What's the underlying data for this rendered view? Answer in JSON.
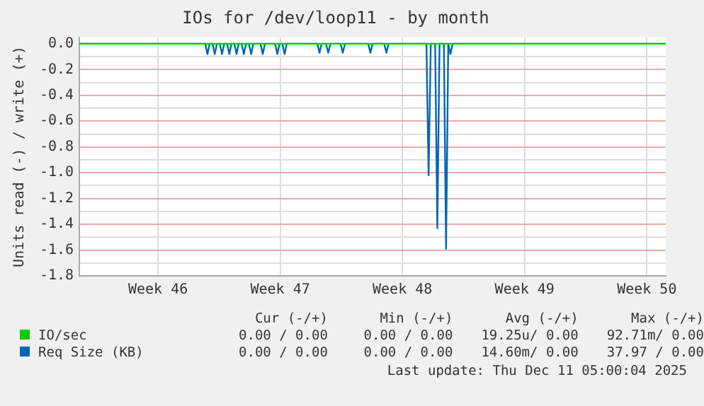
{
  "chart_data": {
    "type": "line",
    "title": "IOs for /dev/loop11 - by month",
    "ylabel": "Units read (-) / write (+)",
    "xlim": [
      "2025-11-09T00:00",
      "2025-12-12T14:00"
    ],
    "ylim": [
      -1.8,
      0.05
    ],
    "xticks": [
      {
        "value": "2025-11-13T12:00",
        "label": "Week 46"
      },
      {
        "value": "2025-11-20T12:00",
        "label": "Week 47"
      },
      {
        "value": "2025-11-27T12:00",
        "label": "Week 48"
      },
      {
        "value": "2025-12-04T12:00",
        "label": "Week 49"
      },
      {
        "value": "2025-12-11T12:00",
        "label": "Week 50"
      }
    ],
    "yticks": [
      {
        "value": 0,
        "label": "0.0"
      },
      {
        "value": -0.1,
        "label": null
      },
      {
        "value": -0.2,
        "label": "-0.2"
      },
      {
        "value": -0.3,
        "label": null
      },
      {
        "value": -0.4,
        "label": "-0.4"
      },
      {
        "value": -0.5,
        "label": null
      },
      {
        "value": -0.6,
        "label": "-0.6"
      },
      {
        "value": -0.7,
        "label": null
      },
      {
        "value": -0.8,
        "label": "-0.8"
      },
      {
        "value": -0.9,
        "label": null
      },
      {
        "value": -1.0,
        "label": "-1.0"
      },
      {
        "value": -1.1,
        "label": null
      },
      {
        "value": -1.2,
        "label": "-1.2"
      },
      {
        "value": -1.3,
        "label": null
      },
      {
        "value": -1.4,
        "label": "-1.4"
      },
      {
        "value": -1.5,
        "label": null
      },
      {
        "value": -1.6,
        "label": "-1.6"
      },
      {
        "value": -1.7,
        "label": null
      },
      {
        "value": -1.8,
        "label": "-1.8"
      }
    ],
    "grid": true,
    "legend": "bottom",
    "marker": "none",
    "line_style": "solid",
    "series": [
      {
        "name": "IO/sec",
        "color": "#00cc00",
        "x": [
          "2025-11-09T00:00",
          "2025-12-12T14:00"
        ],
        "values": [
          0,
          0
        ]
      },
      {
        "name": "Req Size (KB)",
        "color": "#0066b3",
        "x": [
          "2025-11-09T00:00",
          "2025-11-16T05:00",
          "2025-11-16T08:00",
          "2025-11-16T11:00",
          "2025-11-16T15:00",
          "2025-11-16T18:00",
          "2025-11-16T21:00",
          "2025-11-17T01:00",
          "2025-11-17T04:00",
          "2025-11-17T07:00",
          "2025-11-17T11:00",
          "2025-11-17T14:00",
          "2025-11-17T17:00",
          "2025-11-17T21:00",
          "2025-11-18T00:00",
          "2025-11-18T03:00",
          "2025-11-18T07:00",
          "2025-11-18T10:00",
          "2025-11-18T13:00",
          "2025-11-18T17:00",
          "2025-11-18T20:00",
          "2025-11-18T23:00",
          "2025-11-19T09:00",
          "2025-11-19T12:00",
          "2025-11-19T15:00",
          "2025-11-20T05:00",
          "2025-11-20T08:00",
          "2025-11-20T11:00",
          "2025-11-20T15:00",
          "2025-11-20T18:00",
          "2025-11-20T21:00",
          "2025-11-22T15:00",
          "2025-11-22T18:00",
          "2025-11-22T21:00",
          "2025-11-23T03:00",
          "2025-11-23T06:00",
          "2025-11-23T09:00",
          "2025-11-23T23:00",
          "2025-11-24T02:00",
          "2025-11-24T05:00",
          "2025-11-25T13:00",
          "2025-11-25T16:00",
          "2025-11-25T19:00",
          "2025-11-26T11:00",
          "2025-11-26T14:00",
          "2025-11-26T17:00",
          "2025-11-28T21:00",
          "2025-11-29T00:00",
          "2025-11-29T03:00",
          "2025-11-29T09:00",
          "2025-11-29T12:00",
          "2025-11-29T15:00",
          "2025-11-29T21:00",
          "2025-11-30T00:00",
          "2025-11-30T03:00",
          "2025-11-30T06:00",
          "2025-11-30T09:00",
          "2025-12-12T14:00"
        ],
        "values": [
          0,
          0,
          -0.08,
          0,
          0,
          -0.08,
          0,
          0,
          -0.08,
          0,
          0,
          -0.08,
          0,
          0,
          -0.08,
          0,
          0,
          -0.08,
          0,
          0,
          -0.08,
          0,
          0,
          -0.08,
          0,
          0,
          -0.08,
          0,
          0,
          -0.08,
          0,
          0,
          -0.07,
          0,
          0,
          -0.07,
          0,
          0,
          -0.07,
          0,
          0,
          -0.07,
          0,
          0,
          -0.07,
          0,
          0,
          -1.02,
          0,
          0,
          -1.43,
          0,
          0,
          -1.59,
          0,
          -0.08,
          0,
          0
        ]
      }
    ],
    "annotations": [
      "Cur (-/+)",
      "Min (-/+)",
      "Avg (-/+)",
      "Max (-/+)",
      "0.00 / 0.00",
      "0.00 / 0.00",
      "19.25u/ 0.00",
      "92.71m/ 0.00",
      "0.00 / 0.00",
      "0.00 / 0.00",
      "14.60m/ 0.00",
      "37.97 / 0.00",
      "Last update: Thu Dec 11 05:00:04 2025"
    ]
  }
}
